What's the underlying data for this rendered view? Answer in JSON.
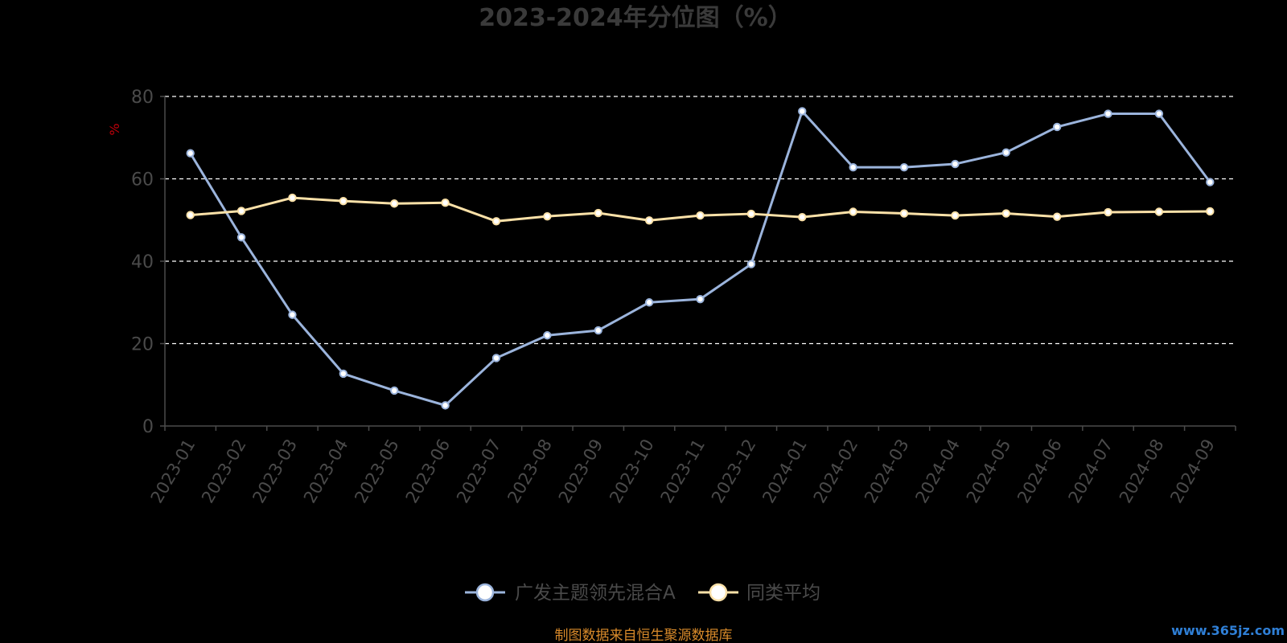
{
  "chart_data": {
    "type": "line",
    "title": "2023-2024年分位图（%）",
    "ylabel": "%",
    "xlabel": "",
    "ylim": [
      0,
      80
    ],
    "yticks": [
      0,
      20,
      40,
      60,
      80
    ],
    "grid": true,
    "legend_position": "bottom-center",
    "categories": [
      "2023-01",
      "2023-02",
      "2023-03",
      "2023-04",
      "2023-05",
      "2023-06",
      "2023-07",
      "2023-08",
      "2023-09",
      "2023-10",
      "2023-11",
      "2023-12",
      "2024-01",
      "2024-02",
      "2024-03",
      "2024-04",
      "2024-05",
      "2024-06",
      "2024-07",
      "2024-08",
      "2024-09"
    ],
    "series": [
      {
        "name": "广发主题领先混合A",
        "color": "#9bb4dc",
        "values": [
          66.2,
          45.8,
          27.0,
          12.7,
          8.6,
          5.0,
          16.5,
          22.0,
          23.2,
          30.0,
          30.8,
          39.3,
          76.4,
          62.8,
          62.8,
          63.6,
          66.4,
          72.6,
          75.8,
          75.8,
          59.2
        ]
      },
      {
        "name": "同类平均",
        "color": "#fbe1a8",
        "values": [
          51.2,
          52.2,
          55.4,
          54.6,
          54.0,
          54.2,
          49.7,
          50.9,
          51.7,
          49.9,
          51.1,
          51.5,
          50.7,
          52.0,
          51.6,
          51.1,
          51.6,
          50.8,
          51.9,
          52.0,
          52.1
        ]
      }
    ]
  },
  "colors": {
    "background": "#000000",
    "axis": "#4a4a4a",
    "grid": "#ffffff",
    "unit_label": "#c0000a",
    "source_note": "#d88a2a",
    "watermark": "#2f7fd6"
  },
  "footer": {
    "source_note": "制图数据来自恒生聚源数据库",
    "watermark": "www.365jz.com"
  }
}
